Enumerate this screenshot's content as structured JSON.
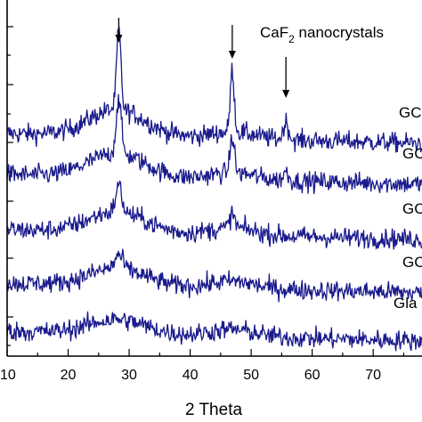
{
  "chart_data": {
    "type": "line",
    "xlabel": "2 Theta",
    "ylabel": "",
    "xlim": [
      10,
      78
    ],
    "x_ticks": [
      10,
      20,
      30,
      40,
      50,
      60,
      70
    ],
    "grid": false,
    "colors": {
      "line": "#1a1a8c",
      "axis": "#000000"
    },
    "annotation": {
      "base": "CaF",
      "sub": "2",
      "rest": " nanocrystals",
      "arrow_positions": [
        28.3,
        46.9,
        55.7
      ]
    },
    "series": [
      {
        "name": "GC",
        "offset": 4,
        "peaks": [
          [
            28.3,
            9,
            0.5
          ],
          [
            46.9,
            7,
            0.45
          ],
          [
            55.7,
            2,
            0.6
          ]
        ]
      },
      {
        "name": "GC",
        "offset": 3,
        "peaks": [
          [
            28.3,
            6,
            0.6
          ],
          [
            46.9,
            4,
            0.5
          ],
          [
            55.7,
            1,
            0.6
          ]
        ]
      },
      {
        "name": "GC",
        "offset": 2,
        "peaks": [
          [
            28.3,
            3,
            0.7
          ],
          [
            46.9,
            1.5,
            0.6
          ]
        ]
      },
      {
        "name": "GC",
        "offset": 1,
        "peaks": [
          [
            28.3,
            1.5,
            0.9
          ]
        ]
      },
      {
        "name": "Gla",
        "offset": 0,
        "peaks": []
      }
    ]
  }
}
